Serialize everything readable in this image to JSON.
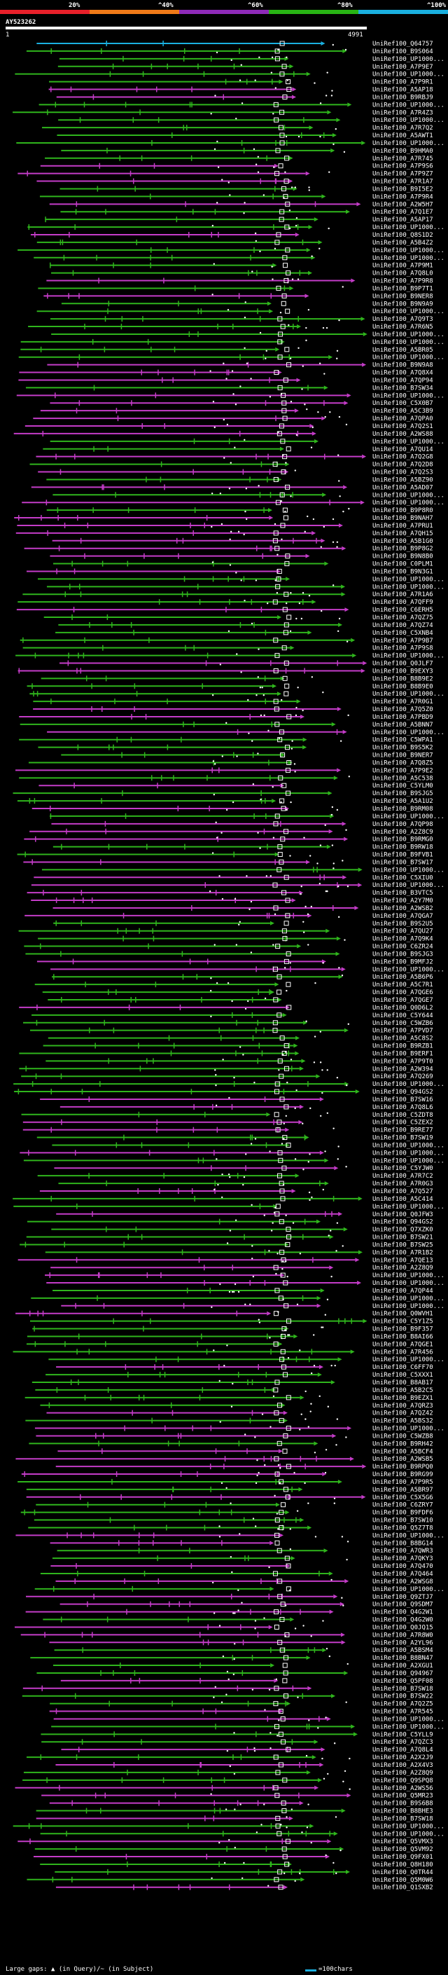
{
  "chart_data": {
    "type": "bar",
    "title": "AY523262",
    "query_start": "1",
    "query_end": "4991",
    "scale": {
      "ticks": [
        "20%",
        "^40%",
        "^60%",
        "^80%",
        "^100%"
      ],
      "colors": [
        "#e8202a",
        "#f07a18",
        "#8e2ab8",
        "#28b414",
        "#1ab0e0"
      ]
    },
    "legend_gaps": "Large gaps: ▲ (in Query)/~ (in Subject)",
    "legend_scale": "=100chars",
    "categories": [
      "UniRef100_Q64757",
      "UniRef100_B9S064",
      "UniRef100_UP1000...",
      "UniRef100_A7P9E7",
      "UniRef100_UP1000...",
      "UniRef100_A7P9R1",
      "UniRef100_A5AP18",
      "UniRef100_B9RBJ9",
      "UniRef100_UP1000...",
      "UniRef100_A7R4Z3",
      "UniRef100_UP1000...",
      "UniRef100_A7R7Q2",
      "UniRef100_A5AWT1",
      "UniRef100_UP1000...",
      "UniRef100_B9HMA0",
      "UniRef100_A7R745",
      "UniRef100_A7P9S6",
      "UniRef100_A7P9Z7",
      "UniRef100_A7R1A7",
      "UniRef100_B9I5E2",
      "UniRef100_A7P9R4",
      "UniRef100_A2W5H7",
      "UniRef100_A7Q1E7",
      "UniRef100_A5AP17",
      "UniRef100_UP1000...",
      "UniRef100_Q8S1D2",
      "UniRef100_A5B4Z2",
      "UniRef100_UP1000...",
      "UniRef100_UP1000...",
      "UniRef100_A7P9M1",
      "UniRef100_A7Q8L0",
      "UniRef100_A7P9R8",
      "UniRef100_B9P7T1",
      "UniRef100_B9NER8",
      "UniRef100_B9N9A9",
      "UniRef100_UP1000...",
      "UniRef100_A7Q9T3",
      "UniRef100_A7R6N5",
      "UniRef100_UP1000...",
      "UniRef100_UP1000...",
      "UniRef100_A5BR05",
      "UniRef100_UP1000...",
      "UniRef100_B9N9A8",
      "UniRef100_A7Q8X4",
      "UniRef100_A7QP94",
      "UniRef100_B7SW34",
      "UniRef100_UP1000...",
      "UniRef100_C5X0B7",
      "UniRef100_A5C3B9",
      "UniRef100_A7QPA0",
      "UniRef100_A7Q2S1",
      "UniRef100_A2WS88",
      "UniRef100_UP1000...",
      "UniRef100_A7QU14",
      "UniRef100_A7Q2G8",
      "UniRef100_A7Q2D8",
      "UniRef100_A7Q2S3",
      "UniRef100_A5BZ90",
      "UniRef100_A5AD07",
      "UniRef100_UP1000...",
      "UniRef100_UP1000...",
      "UniRef100_B9P8R0",
      "UniRef100_B9NAH7",
      "UniRef100_A7PRU1",
      "UniRef100_A7QH15",
      "UniRef100_A5B1G0",
      "UniRef100_B9P8G2",
      "UniRef100_B9N8B0",
      "UniRef100_C0PLM1",
      "UniRef100_B9N3G1",
      "UniRef100_UP1000...",
      "UniRef100_UP1000...",
      "UniRef100_A7R1A6",
      "UniRef100_A7QFF9",
      "UniRef100_C6ERH5",
      "UniRef100_A7QZ75",
      "UniRef100_A7QZ74",
      "UniRef100_C5XNB4",
      "UniRef100_A7P9B7",
      "UniRef100_A7P9S8",
      "UniRef100_UP1000...",
      "UniRef100_Q0JLF7",
      "UniRef100_B9EXY3",
      "UniRef100_B8B9E2",
      "UniRef100_B8B9E0",
      "UniRef100_UP1000...",
      "UniRef100_A7R0G1",
      "UniRef100_A7Q5Z0",
      "UniRef100_A7PBD9",
      "UniRef100_A5BNN7",
      "UniRef100_UP1000...",
      "UniRef100_C5WPA1",
      "UniRef100_B9S5K2",
      "UniRef100_B9NER7",
      "UniRef100_A7Q8Z5",
      "UniRef100_A7P9E2",
      "UniRef100_A5C538",
      "UniRef100_C5YLM0",
      "UniRef100_B9SJG5",
      "UniRef100_A5A1U2",
      "UniRef100_B9RM08",
      "UniRef100_UP1000...",
      "UniRef100_A7QP98",
      "UniRef100_A2Z8C9",
      "UniRef100_B9RMG0",
      "UniRef100_B9RW18",
      "UniRef100_B9FVB1",
      "UniRef100_B7SW17",
      "UniRef100_UP1000...",
      "UniRef100_C5XIU0",
      "UniRef100_UP1000...",
      "UniRef100_B3VTC5",
      "UniRef100_A2Y7M0",
      "UniRef100_A2WSB2",
      "UniRef100_A7QGA7",
      "UniRef100_B9S2U5",
      "UniRef100_A7QU27",
      "UniRef100_A7Q9K4",
      "UniRef100_C6ZR24",
      "UniRef100_B9SJG3",
      "UniRef100_B9MFJ2",
      "UniRef100_UP1000...",
      "UniRef100_A5B6P6",
      "UniRef100_A5C7R1",
      "UniRef100_A7QGE6",
      "UniRef100_A7QGE7",
      "UniRef100_Q0D6L2",
      "UniRef100_C5Y644",
      "UniRef100_C5WZB6",
      "UniRef100_A7PVD7",
      "UniRef100_A5C8S2",
      "UniRef100_B9RZB1",
      "UniRef100_B9ERF1",
      "UniRef100_A7P9T0",
      "UniRef100_A2W394",
      "UniRef100_A7Q269",
      "UniRef100_UP1000...",
      "UniRef100_Q94GS2",
      "UniRef100_B7SW16",
      "UniRef100_A7Q8L6",
      "UniRef100_C5ZDT8",
      "UniRef100_C5ZEX2",
      "UniRef100_B9RE77",
      "UniRef100_B7SW19",
      "UniRef100_UP1000...",
      "UniRef100_UP1000...",
      "UniRef100_UP1000...",
      "UniRef100_C5YJW0",
      "UniRef100_A7R7C2",
      "UniRef100_A7R0G3",
      "UniRef100_A7Q527",
      "UniRef100_A5C414",
      "UniRef100_UP1000...",
      "UniRef100_Q0JFW3",
      "UniRef100_Q94GS2",
      "UniRef100_Q7XZK0",
      "UniRef100_B7SW21",
      "UniRef100_B7SW25",
      "UniRef100_A7R1B2",
      "UniRef100_A7QE13",
      "UniRef100_A2Z8Q9",
      "UniRef100_UP1000...",
      "UniRef100_UP1000...",
      "UniRef100_A7QP44",
      "UniRef100_UP1000...",
      "UniRef100_UP1000...",
      "UniRef100_Q0WVH1",
      "UniRef100_C5Y1Z5",
      "UniRef100_B9F357",
      "UniRef100_B8AI66",
      "UniRef100_A7QGE1",
      "UniRef100_A7R456",
      "UniRef100_UP1000...",
      "UniRef100_C6FF70",
      "UniRef100_C5XXX1",
      "UniRef100_B8AB17",
      "UniRef100_A5B2C5",
      "UniRef100_B9EZX1",
      "UniRef100_A7QRZ3",
      "UniRef100_A7QZ42",
      "UniRef100_A5BS32",
      "UniRef100_UP1000...",
      "UniRef100_C5WZB8",
      "UniRef100_B9RH42",
      "UniRef100_A5BCF4",
      "UniRef100_A2WSB5",
      "UniRef100_B9RPQ0",
      "UniRef100_B9RG99",
      "UniRef100_A7P9R5",
      "UniRef100_A5BR97",
      "UniRef100_C5X5G6",
      "UniRef100_C6ZRY7",
      "UniRef100_B9FDF6",
      "UniRef100_B7SW10",
      "UniRef100_Q5Z7T8",
      "UniRef100_UP1000...",
      "UniRef100_B8BG14",
      "UniRef100_A7QWR3",
      "UniRef100_A7QKY3",
      "UniRef100_A7Q470",
      "UniRef100_A7Q464",
      "UniRef100_A2WSG8",
      "UniRef100_UP1000...",
      "UniRef100_Q9ZTJ7",
      "UniRef100_Q9SDM7",
      "UniRef100_Q4G2W1",
      "UniRef100_Q4G2W0",
      "UniRef100_Q0JQ15",
      "UniRef100_A7R8W0",
      "UniRef100_A2YL96",
      "UniRef100_A5BSM4",
      "UniRef100_B8BN47",
      "UniRef100_A2XGU1",
      "UniRef100_Q94967",
      "UniRef100_Q5PF08",
      "UniRef100_B7SW18",
      "UniRef100_B7SW22",
      "UniRef100_A7Q2Z5",
      "UniRef100_A7R545",
      "UniRef100_UP1000...",
      "UniRef100_UP1000...",
      "UniRef100_C5YLL9",
      "UniRef100_A7QZC3",
      "UniRef100_A7Q8L4",
      "UniRef100_A2X2J9",
      "UniRef100_A2X4V3",
      "UniRef100_A2Z8Q9",
      "UniRef100_Q9SPQ8",
      "UniRef100_A2WS56",
      "UniRef100_Q5MR23",
      "UniRef100_B9S6B8",
      "UniRef100_B8BHE3",
      "UniRef100_B7SW18",
      "UniRef100_UP1000...",
      "UniRef100_UP1000...",
      "UniRef100_Q5VMX3",
      "UniRef100_Q5VM92",
      "UniRef100_Q9FX01",
      "UniRef100_Q8H180",
      "UniRef100_Q0TR44",
      "UniRef100_Q5M0W6",
      "UniRef100_Q1SXB2"
    ]
  }
}
